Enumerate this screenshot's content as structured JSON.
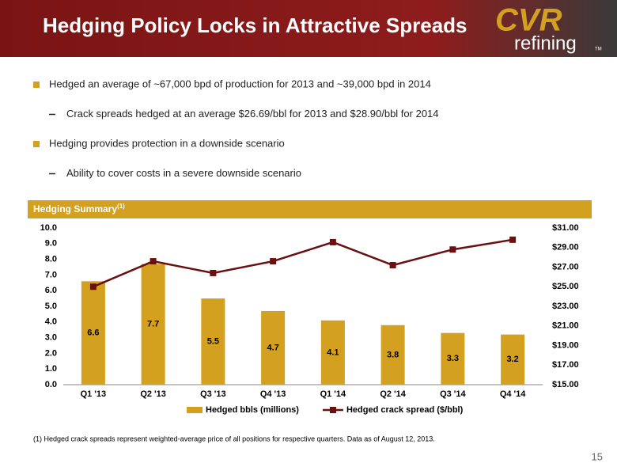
{
  "header": {
    "title": "Hedging Policy Locks in Attractive Spreads",
    "logo": {
      "mark": "CVR",
      "name": "refining",
      "tm": "TM"
    }
  },
  "bullets": [
    {
      "level": 1,
      "text": "Hedged an average of ~67,000 bpd of production for 2013 and ~39,000 bpd in 2014"
    },
    {
      "level": 2,
      "text": "Crack spreads hedged at an average $26.69/bbl for 2013 and $28.90/bbl for 2014"
    },
    {
      "level": 1,
      "text": "Hedging provides protection in a downside scenario"
    },
    {
      "level": 2,
      "text": "Ability to cover costs in a severe downside scenario"
    }
  ],
  "section": {
    "title": "Hedging Summary",
    "note": "(1)"
  },
  "chart_data": {
    "type": "combo",
    "categories": [
      "Q1 '13",
      "Q2 '13",
      "Q3 '13",
      "Q4 '13",
      "Q1 '14",
      "Q2 '14",
      "Q3 '14",
      "Q4 '14"
    ],
    "series": [
      {
        "name": "Hedged bbls (millions)",
        "type": "bar",
        "color": "#d4a01f",
        "values": [
          6.6,
          7.7,
          5.5,
          4.7,
          4.1,
          3.8,
          3.3,
          3.2
        ]
      },
      {
        "name": "Hedged crack spread ($/bbl)",
        "type": "line",
        "axis": "y2",
        "color": "#6b1010",
        "values": [
          25.0,
          27.6,
          26.4,
          27.6,
          29.55,
          27.2,
          28.8,
          29.8
        ]
      }
    ],
    "ylim": [
      0,
      10
    ],
    "yticks": [
      {
        "value": 0,
        "label": "0.0"
      },
      {
        "value": 1,
        "label": "1.0"
      },
      {
        "value": 2,
        "label": "2.0"
      },
      {
        "value": 3,
        "label": "3.0"
      },
      {
        "value": 4,
        "label": "4.0"
      },
      {
        "value": 5,
        "label": "5.0"
      },
      {
        "value": 6,
        "label": "6.0"
      },
      {
        "value": 7,
        "label": "7.0"
      },
      {
        "value": 8,
        "label": "8.0"
      },
      {
        "value": 9,
        "label": "9.0"
      },
      {
        "value": 10,
        "label": "10.0"
      }
    ],
    "y2lim": [
      15,
      31
    ],
    "y2ticks": [
      {
        "value": 15,
        "label": "$15.00"
      },
      {
        "value": 17,
        "label": "$17.00"
      },
      {
        "value": 19,
        "label": "$19.00"
      },
      {
        "value": 21,
        "label": "$21.00"
      },
      {
        "value": 23,
        "label": "$23.00"
      },
      {
        "value": 25,
        "label": "$25.00"
      },
      {
        "value": 27,
        "label": "$27.00"
      },
      {
        "value": 29,
        "label": "$29.00"
      },
      {
        "value": 31,
        "label": "$31.00"
      }
    ],
    "grid": false,
    "legend": "bottom"
  },
  "footnote": "(1) Hedged crack spreads represent weighted-average price of all positions for respective quarters.  Data as of August 12, 2013.",
  "page_number": "15"
}
